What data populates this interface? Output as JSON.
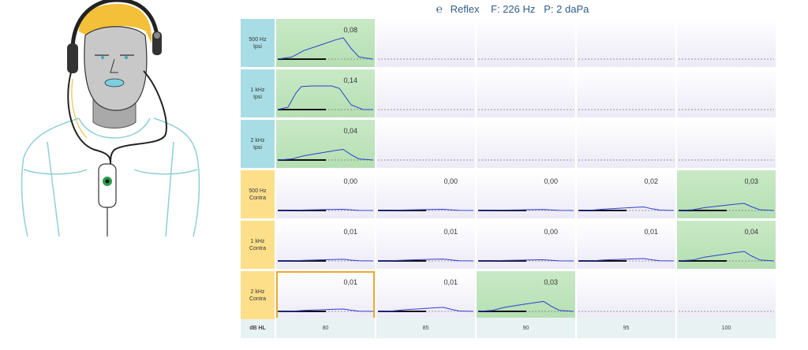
{
  "header": {
    "ear_icon": "ear-icon",
    "test_name": "Reflex",
    "frequency": "F: 226 Hz",
    "pressure": "P: 2 daPa"
  },
  "rows": [
    {
      "label_line1": "500 Hz",
      "label_line2": "Ipsi",
      "type": "ipsi"
    },
    {
      "label_line1": "1 kHz",
      "label_line2": "Ipsi",
      "type": "ipsi"
    },
    {
      "label_line1": "2 kHz",
      "label_line2": "Ipsi",
      "type": "ipsi"
    },
    {
      "label_line1": "500 Hz",
      "label_line2": "Contra",
      "type": "contra"
    },
    {
      "label_line1": "1 kHz",
      "label_line2": "Contra",
      "type": "contra"
    },
    {
      "label_line1": "2 kHz",
      "label_line2": "Contra",
      "type": "contra"
    }
  ],
  "x_axis": {
    "label": "dB HL",
    "levels": [
      "80",
      "85",
      "90",
      "95",
      "100"
    ]
  },
  "cells": [
    [
      {
        "value": "0,08",
        "green": true,
        "amp": 0.9
      },
      null,
      null,
      null,
      null
    ],
    [
      {
        "value": "0,14",
        "green": true,
        "amp": 1.0,
        "wide": true
      },
      null,
      null,
      null,
      null
    ],
    [
      {
        "value": "0,04",
        "green": true,
        "amp": 0.45
      },
      null,
      null,
      null,
      null
    ],
    [
      {
        "value": "0,00",
        "amp": 0.05
      },
      {
        "value": "0,00",
        "amp": 0.05
      },
      {
        "value": "0,00",
        "amp": 0.04
      },
      {
        "value": "0,02",
        "amp": 0.15
      },
      {
        "value": "0,03",
        "green": true,
        "amp": 0.3
      }
    ],
    [
      {
        "value": "0,01",
        "amp": 0.07
      },
      {
        "value": "0,01",
        "amp": 0.08
      },
      {
        "value": "0,00",
        "amp": 0.05
      },
      {
        "value": "0,01",
        "amp": 0.1
      },
      {
        "value": "0,04",
        "green": true,
        "amp": 0.4
      }
    ],
    [
      {
        "value": "0,01",
        "amp": 0.1,
        "selected": true
      },
      {
        "value": "0,01",
        "amp": 0.17
      },
      {
        "value": "0,03",
        "green": true,
        "amp": 0.42
      },
      null,
      null
    ]
  ],
  "illustration": {
    "description_icon": "patient-with-headphones-and-probe-icon"
  }
}
